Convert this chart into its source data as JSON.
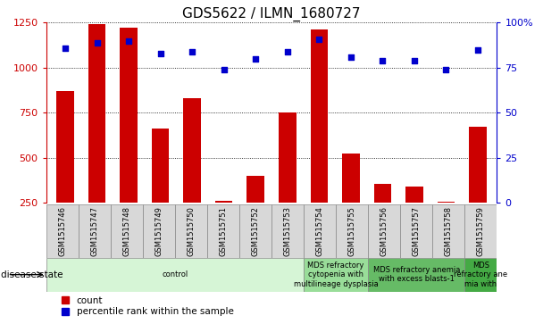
{
  "title": "GDS5622 / ILMN_1680727",
  "samples": [
    "GSM1515746",
    "GSM1515747",
    "GSM1515748",
    "GSM1515749",
    "GSM1515750",
    "GSM1515751",
    "GSM1515752",
    "GSM1515753",
    "GSM1515754",
    "GSM1515755",
    "GSM1515756",
    "GSM1515757",
    "GSM1515758",
    "GSM1515759"
  ],
  "counts": [
    870,
    1240,
    1220,
    660,
    830,
    260,
    400,
    750,
    1210,
    520,
    355,
    340,
    255,
    670
  ],
  "percentile_ranks": [
    86,
    89,
    90,
    83,
    84,
    74,
    80,
    84,
    91,
    81,
    79,
    79,
    74,
    85
  ],
  "bar_color": "#cc0000",
  "dot_color": "#0000cc",
  "ylim_left": [
    250,
    1250
  ],
  "ylim_right": [
    0,
    100
  ],
  "yticks_left": [
    250,
    500,
    750,
    1000,
    1250
  ],
  "yticks_right": [
    0,
    25,
    50,
    75,
    100
  ],
  "disease_groups": [
    {
      "label": "control",
      "start": 0,
      "end": 8,
      "color": "#d6f5d6"
    },
    {
      "label": "MDS refractory\ncytopenia with\nmultilineage dysplasia",
      "start": 8,
      "end": 10,
      "color": "#99dd99"
    },
    {
      "label": "MDS refractory anemia\nwith excess blasts-1",
      "start": 10,
      "end": 13,
      "color": "#66bb66"
    },
    {
      "label": "MDS\nrefractory ane\nmia with",
      "start": 13,
      "end": 14,
      "color": "#44aa44"
    }
  ],
  "disease_state_label": "disease state",
  "legend_count_label": "count",
  "legend_percentile_label": "percentile rank within the sample",
  "title_fontsize": 11,
  "tick_fontsize": 8,
  "sample_tick_fontsize": 6,
  "bar_bottom": 0,
  "grid_linestyle": "dotted",
  "grid_color": "black",
  "grid_linewidth": 0.6
}
